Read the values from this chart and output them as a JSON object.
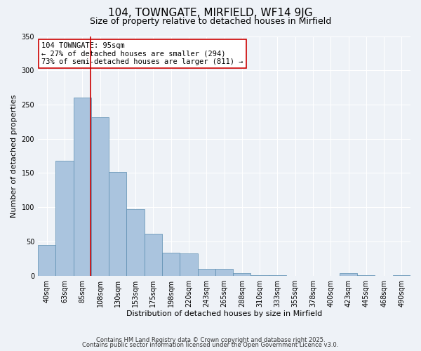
{
  "title": "104, TOWNGATE, MIRFIELD, WF14 9JG",
  "subtitle": "Size of property relative to detached houses in Mirfield",
  "xlabel": "Distribution of detached houses by size in Mirfield",
  "ylabel": "Number of detached properties",
  "bar_labels": [
    "40sqm",
    "63sqm",
    "85sqm",
    "108sqm",
    "130sqm",
    "153sqm",
    "175sqm",
    "198sqm",
    "220sqm",
    "243sqm",
    "265sqm",
    "288sqm",
    "310sqm",
    "333sqm",
    "355sqm",
    "378sqm",
    "400sqm",
    "423sqm",
    "445sqm",
    "468sqm",
    "490sqm"
  ],
  "bar_values": [
    45,
    168,
    260,
    232,
    152,
    97,
    61,
    34,
    33,
    10,
    10,
    4,
    1,
    1,
    0,
    0,
    0,
    4,
    1,
    0,
    1
  ],
  "bar_color": "#aac4de",
  "bar_edge_color": "#5a8db0",
  "ylim": [
    0,
    350
  ],
  "yticks": [
    0,
    50,
    100,
    150,
    200,
    250,
    300,
    350
  ],
  "vline_color": "#cc0000",
  "vline_pos": 2.45,
  "annotation_title": "104 TOWNGATE: 95sqm",
  "annotation_line1": "← 27% of detached houses are smaller (294)",
  "annotation_line2": "73% of semi-detached houses are larger (811) →",
  "annotation_box_color": "#ffffff",
  "annotation_box_edge": "#cc0000",
  "footer1": "Contains HM Land Registry data © Crown copyright and database right 2025.",
  "footer2": "Contains public sector information licensed under the Open Government Licence v3.0.",
  "background_color": "#eef2f7",
  "plot_background": "#eef2f7",
  "grid_color": "#ffffff",
  "title_fontsize": 11,
  "subtitle_fontsize": 9,
  "tick_fontsize": 7,
  "label_fontsize": 8,
  "ann_fontsize": 7.5,
  "footer_fontsize": 6
}
